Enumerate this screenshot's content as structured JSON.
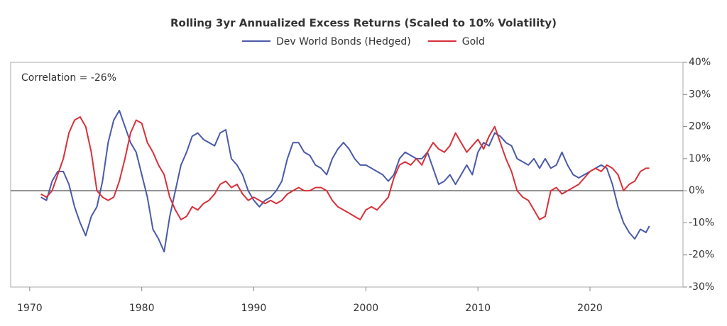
{
  "chart_data": {
    "type": "line",
    "title": "Rolling 3yr Annualized Excess Returns (Scaled to 10% Volatility)",
    "annotation": "Correlation = -26%",
    "x": [
      1971,
      1971.5,
      1972,
      1972.5,
      1973,
      1973.5,
      1974,
      1974.5,
      1975,
      1975.5,
      1976,
      1976.5,
      1977,
      1977.5,
      1978,
      1978.5,
      1979,
      1979.5,
      1980,
      1980.5,
      1981,
      1981.5,
      1982,
      1982.5,
      1983,
      1983.5,
      1984,
      1984.5,
      1985,
      1985.5,
      1986,
      1986.5,
      1987,
      1987.5,
      1988,
      1988.5,
      1989,
      1989.5,
      1990,
      1990.5,
      1991,
      1991.5,
      1992,
      1992.5,
      1993,
      1993.5,
      1994,
      1994.5,
      1995,
      1995.5,
      1996,
      1996.5,
      1997,
      1997.5,
      1998,
      1998.5,
      1999,
      1999.5,
      2000,
      2000.5,
      2001,
      2001.5,
      2002,
      2002.5,
      2003,
      2003.5,
      2004,
      2004.5,
      2005,
      2005.5,
      2006,
      2006.5,
      2007,
      2007.5,
      2008,
      2008.5,
      2009,
      2009.5,
      2010,
      2010.5,
      2011,
      2011.5,
      2012,
      2012.5,
      2013,
      2013.5,
      2014,
      2014.5,
      2015,
      2015.5,
      2016,
      2016.5,
      2017,
      2017.5,
      2018,
      2018.5,
      2019,
      2019.5,
      2020,
      2020.5,
      2021,
      2021.5,
      2022,
      2022.5,
      2023,
      2023.5,
      2024,
      2024.5,
      2025,
      2025.3
    ],
    "series": [
      {
        "name": "Dev World Bonds (Hedged)",
        "color": "#4a5aa8",
        "values": [
          -2,
          -3,
          3,
          6,
          6,
          2,
          -5,
          -10,
          -14,
          -8,
          -5,
          3,
          15,
          22,
          25,
          20,
          15,
          12,
          5,
          -2,
          -12,
          -15,
          -19,
          -8,
          0,
          8,
          12,
          17,
          18,
          16,
          15,
          14,
          18,
          19,
          10,
          8,
          5,
          0,
          -3,
          -5,
          -3,
          -2,
          0,
          3,
          10,
          15,
          15,
          12,
          11,
          8,
          7,
          5,
          10,
          13,
          15,
          13,
          10,
          8,
          8,
          7,
          6,
          5,
          3,
          5,
          10,
          12,
          11,
          10,
          10,
          12,
          7,
          2,
          3,
          5,
          2,
          5,
          8,
          5,
          12,
          15,
          14,
          18,
          17,
          15,
          14,
          10,
          9,
          8,
          10,
          7,
          10,
          7,
          8,
          12,
          8,
          5,
          4,
          5,
          6,
          7,
          8,
          7,
          2,
          -5,
          -10,
          -13,
          -15,
          -12,
          -13,
          -11
        ]
      },
      {
        "name": "Gold",
        "color": "#d9303a",
        "values": [
          -1,
          -2,
          0,
          5,
          10,
          18,
          22,
          23,
          20,
          12,
          0,
          -2,
          -3,
          -2,
          3,
          10,
          18,
          22,
          21,
          15,
          12,
          8,
          5,
          -2,
          -6,
          -9,
          -8,
          -5,
          -6,
          -4,
          -3,
          -1,
          2,
          3,
          1,
          2,
          -1,
          -3,
          -2,
          -3,
          -4,
          -3,
          -4,
          -3,
          -1,
          0,
          1,
          0,
          0,
          1,
          1,
          0,
          -3,
          -5,
          -6,
          -7,
          -8,
          -9,
          -6,
          -5,
          -6,
          -4,
          -2,
          4,
          8,
          9,
          8,
          10,
          8,
          12,
          15,
          13,
          12,
          14,
          18,
          15,
          12,
          14,
          16,
          13,
          17,
          20,
          15,
          10,
          6,
          0,
          -2,
          -3,
          -6,
          -9,
          -8,
          0,
          1,
          -1,
          0,
          1,
          2,
          4,
          6,
          7,
          6,
          8,
          7,
          5,
          0,
          2,
          3,
          6,
          7,
          7
        ]
      }
    ],
    "xlim": [
      1968.3,
      2028.3
    ],
    "xticks": [
      1970,
      1980,
      1990,
      2000,
      2010,
      2020
    ],
    "ylim": [
      -30,
      40
    ],
    "yticks": [
      {
        "value": -30,
        "label": "-30%"
      },
      {
        "value": -20,
        "label": "-20%"
      },
      {
        "value": -10,
        "label": "-10%"
      },
      {
        "value": 0,
        "label": "0%"
      },
      {
        "value": 10,
        "label": "10%"
      },
      {
        "value": 20,
        "label": "20%"
      },
      {
        "value": 30,
        "label": "30%"
      },
      {
        "value": 40,
        "label": "40%"
      }
    ],
    "grid": false,
    "legend": "top"
  }
}
